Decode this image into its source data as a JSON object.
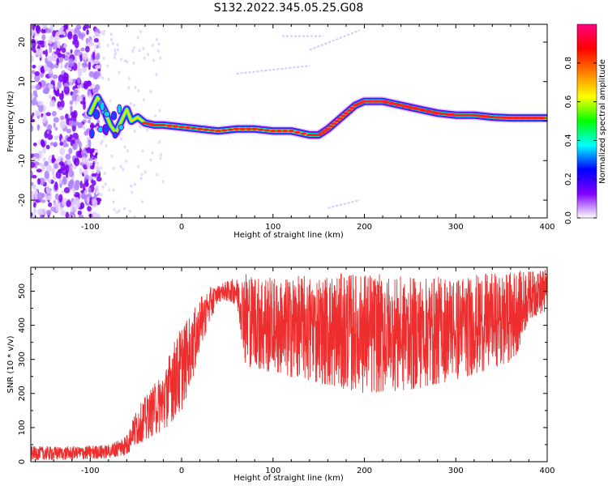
{
  "figure_title": "S132.2022.345.05.25.G08",
  "chart_data": [
    {
      "type": "heatmap",
      "xlabel": "Height of straight line (km)",
      "ylabel": "Frequency (Hz)",
      "xlim": [
        -165,
        400
      ],
      "ylim": [
        -24.5,
        24.5
      ],
      "xticks": [
        -100,
        0,
        100,
        200,
        300,
        400
      ],
      "yticks": [
        -20,
        -10,
        0,
        10,
        20
      ],
      "colorbar": {
        "label": "Normalized spectral amplitude",
        "range": [
          0,
          1
        ],
        "ticks": [
          0.0,
          0.2,
          0.4,
          0.6,
          0.8
        ],
        "colormap": [
          "#ffffff",
          "#8000ff",
          "#0000ff",
          "#00ffff",
          "#00ff00",
          "#ffff00",
          "#ff8000",
          "#ff0000",
          "#ff0080"
        ]
      },
      "ridge": {
        "x": [
          -100,
          -92,
          -85,
          -78,
          -72,
          -66,
          -60,
          -55,
          -48,
          -40,
          -30,
          -20,
          0,
          20,
          40,
          60,
          80,
          100,
          120,
          140,
          150,
          160,
          170,
          180,
          190,
          200,
          220,
          240,
          260,
          280,
          300,
          320,
          340,
          360,
          380,
          400
        ],
        "frequency": [
          2,
          6,
          3,
          -1,
          -3,
          0,
          3,
          0,
          1,
          -0.5,
          -1,
          -1,
          -1.5,
          -2,
          -2.5,
          -2,
          -2,
          -2.5,
          -2.5,
          -3.5,
          -3.5,
          -2,
          0,
          2,
          4,
          5,
          5,
          4,
          3,
          2,
          1.5,
          1.5,
          1,
          0.8,
          0.8,
          0.8
        ]
      },
      "faint_traces": [
        {
          "x": [
            60,
            140
          ],
          "frequency": [
            12,
            14
          ]
        },
        {
          "x": [
            140,
            195
          ],
          "frequency": [
            18,
            23
          ]
        },
        {
          "x": [
            110,
            155
          ],
          "frequency": [
            21.5,
            21.5
          ]
        },
        {
          "x": [
            160,
            195
          ],
          "frequency": [
            -22,
            -20
          ]
        }
      ],
      "noise_region_x": [
        -165,
        -100
      ]
    },
    {
      "type": "line",
      "xlabel": "Height of straight line (km)",
      "ylabel": "SNR (10 * v/v)",
      "xlim": [
        -165,
        400
      ],
      "ylim": [
        0,
        570
      ],
      "xticks": [
        -100,
        0,
        100,
        200,
        300,
        400
      ],
      "yticks": [
        0,
        100,
        200,
        300,
        400,
        500
      ],
      "color": "#ee2e2e",
      "envelope": {
        "x": [
          -165,
          -120,
          -80,
          -60,
          -50,
          -40,
          -30,
          -20,
          -10,
          0,
          10,
          20,
          30,
          40,
          50,
          60,
          70,
          100,
          150,
          200,
          250,
          300,
          350,
          365,
          380,
          400
        ],
        "lower": [
          5,
          5,
          10,
          20,
          50,
          60,
          80,
          90,
          120,
          150,
          220,
          330,
          400,
          470,
          470,
          460,
          280,
          260,
          230,
          200,
          210,
          240,
          280,
          300,
          420,
          440
        ],
        "upper": [
          45,
          45,
          50,
          80,
          150,
          190,
          230,
          260,
          350,
          400,
          430,
          480,
          510,
          520,
          530,
          540,
          560,
          540,
          550,
          555,
          540,
          545,
          555,
          560,
          560,
          565
        ]
      }
    }
  ]
}
